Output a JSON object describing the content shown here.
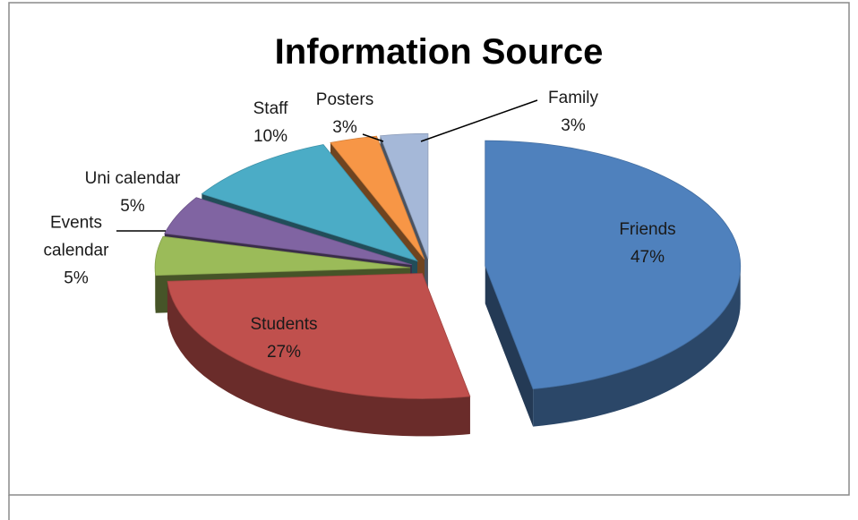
{
  "chart_data": {
    "type": "pie",
    "title": "Information Source",
    "categories": [
      "Friends",
      "Students",
      "Events calendar",
      "Uni calendar",
      "Staff",
      "Posters",
      "Family"
    ],
    "values": [
      47,
      27,
      5,
      5,
      10,
      3,
      3
    ],
    "value_labels": [
      "47%",
      "27%",
      "5%",
      "5%",
      "10%",
      "3%",
      "3%"
    ],
    "colors": [
      "#4f81bd",
      "#c0504d",
      "#9bbb59",
      "#8064a2",
      "#4bacc6",
      "#f79646",
      "#a5b8d8"
    ]
  }
}
